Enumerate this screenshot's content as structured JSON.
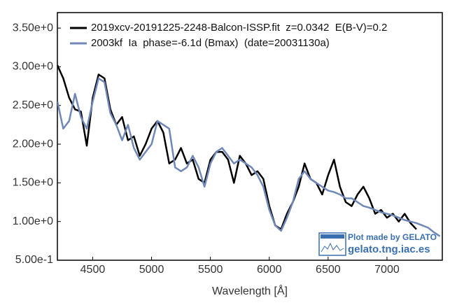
{
  "chart_data": {
    "type": "line",
    "x_label": "Wavelength [Å]",
    "x": [
      4200,
      4250,
      4300,
      4350,
      4400,
      4450,
      4500,
      4550,
      4600,
      4650,
      4700,
      4750,
      4800,
      4850,
      4900,
      4950,
      5000,
      5050,
      5100,
      5150,
      5200,
      5250,
      5300,
      5350,
      5400,
      5450,
      5500,
      5550,
      5600,
      5650,
      5700,
      5750,
      5800,
      5850,
      5900,
      5950,
      6000,
      6050,
      6100,
      6150,
      6200,
      6250,
      6300,
      6350,
      6400,
      6450,
      6500,
      6550,
      6600,
      6650,
      6700,
      6750,
      6800,
      6850,
      6900,
      6950,
      7000,
      7050,
      7100,
      7150,
      7200,
      7250,
      7300,
      7350,
      7400,
      7450
    ],
    "series": [
      {
        "name": "2019xcv-20191225-2248-Balcon-ISSP.fit  z=0.0342  E(B-V)=0.2",
        "color": "#000000",
        "values": [
          3.02,
          2.85,
          2.6,
          2.45,
          2.42,
          1.98,
          2.6,
          2.9,
          2.85,
          2.45,
          2.25,
          2.35,
          2.05,
          2.1,
          1.85,
          2.0,
          2.2,
          2.3,
          2.15,
          1.75,
          1.8,
          1.95,
          1.75,
          1.8,
          1.55,
          1.5,
          1.8,
          1.9,
          1.9,
          1.8,
          1.5,
          1.85,
          1.75,
          1.6,
          1.65,
          1.55,
          1.2,
          0.95,
          0.9,
          1.1,
          1.25,
          1.45,
          1.75,
          1.55,
          1.5,
          1.35,
          1.6,
          1.8,
          1.45,
          1.25,
          1.2,
          1.35,
          1.45,
          1.3,
          1.1,
          1.15,
          1.05,
          1.1,
          1.0,
          1.1,
          0.98,
          0.9,
          null,
          null,
          null,
          null
        ]
      },
      {
        "name": "2003kf  Ia  phase=-6.1d (Bmax)  (date=20031130a)",
        "color": "#7088b8",
        "values": [
          2.55,
          2.2,
          2.3,
          2.65,
          2.35,
          2.2,
          2.55,
          2.85,
          2.8,
          2.4,
          2.25,
          2.05,
          2.25,
          1.95,
          1.8,
          1.9,
          2.0,
          2.3,
          2.25,
          2.2,
          1.7,
          1.65,
          1.7,
          1.85,
          1.7,
          1.45,
          1.75,
          1.9,
          1.95,
          1.85,
          1.75,
          1.8,
          1.75,
          1.7,
          1.6,
          1.45,
          1.15,
          0.95,
          0.88,
          1.05,
          1.25,
          1.55,
          1.65,
          1.55,
          1.5,
          1.45,
          1.4,
          1.38,
          1.35,
          1.3,
          1.3,
          1.25,
          1.2,
          1.18,
          1.15,
          1.12,
          1.1,
          1.08,
          1.05,
          1.02,
          1.0,
          0.98,
          0.95,
          0.92,
          0.86,
          0.81
        ]
      }
    ],
    "xlim": [
      4200,
      7470
    ],
    "ylim": [
      0.5,
      3.7
    ],
    "xticks": [
      4500,
      5000,
      5500,
      6000,
      6500,
      7000
    ],
    "yticks": [
      {
        "value": 0.5,
        "label": "5.00e-1"
      },
      {
        "value": 1.0,
        "label": "1.00e+0"
      },
      {
        "value": 1.5,
        "label": "1.50e+0"
      },
      {
        "value": 2.0,
        "label": "2.00e+0"
      },
      {
        "value": 2.5,
        "label": "2.50e+0"
      },
      {
        "value": 3.0,
        "label": "3.00e+0"
      },
      {
        "value": 3.5,
        "label": "3.50e+0"
      }
    ],
    "watermark": {
      "line1": "Plot made by GELATO",
      "line2": "gelato.tng.iac.es"
    }
  }
}
